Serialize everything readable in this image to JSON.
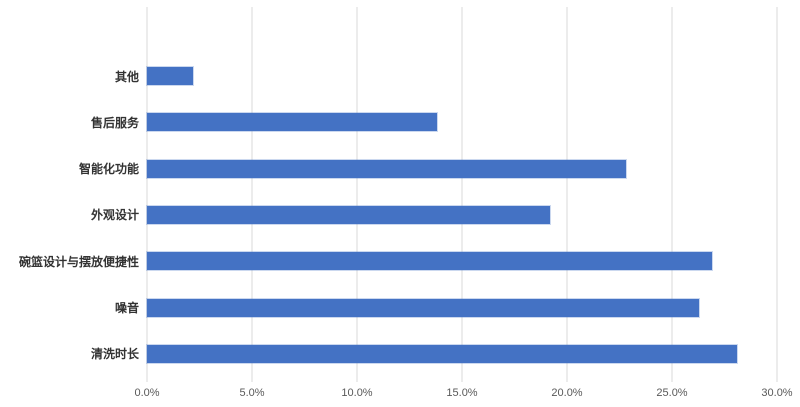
{
  "chart_data": {
    "type": "bar",
    "orientation": "horizontal",
    "title": "",
    "xlabel": "",
    "ylabel": "",
    "categories": [
      "其他",
      "售后服务",
      "智能化功能",
      "外观设计",
      "碗篮设计与摆放便捷性",
      "噪音",
      "清洗时长"
    ],
    "values": [
      2.2,
      13.8,
      22.8,
      19.2,
      26.9,
      26.3,
      28.1
    ],
    "value_unit": "%",
    "xlim": [
      0,
      30
    ],
    "x_ticks": [
      0,
      5,
      10,
      15,
      20,
      25,
      30
    ],
    "x_tick_labels": [
      "0.0%",
      "5.0%",
      "10.0%",
      "15.0%",
      "20.0%",
      "25.0%",
      "30.0%"
    ],
    "grid": true,
    "legend": "none",
    "colors": {
      "bar": "#4472C4",
      "gridline": "#d9d9d9",
      "tick_label": "#595959",
      "category_label": "#333333",
      "background": "#ffffff"
    }
  }
}
